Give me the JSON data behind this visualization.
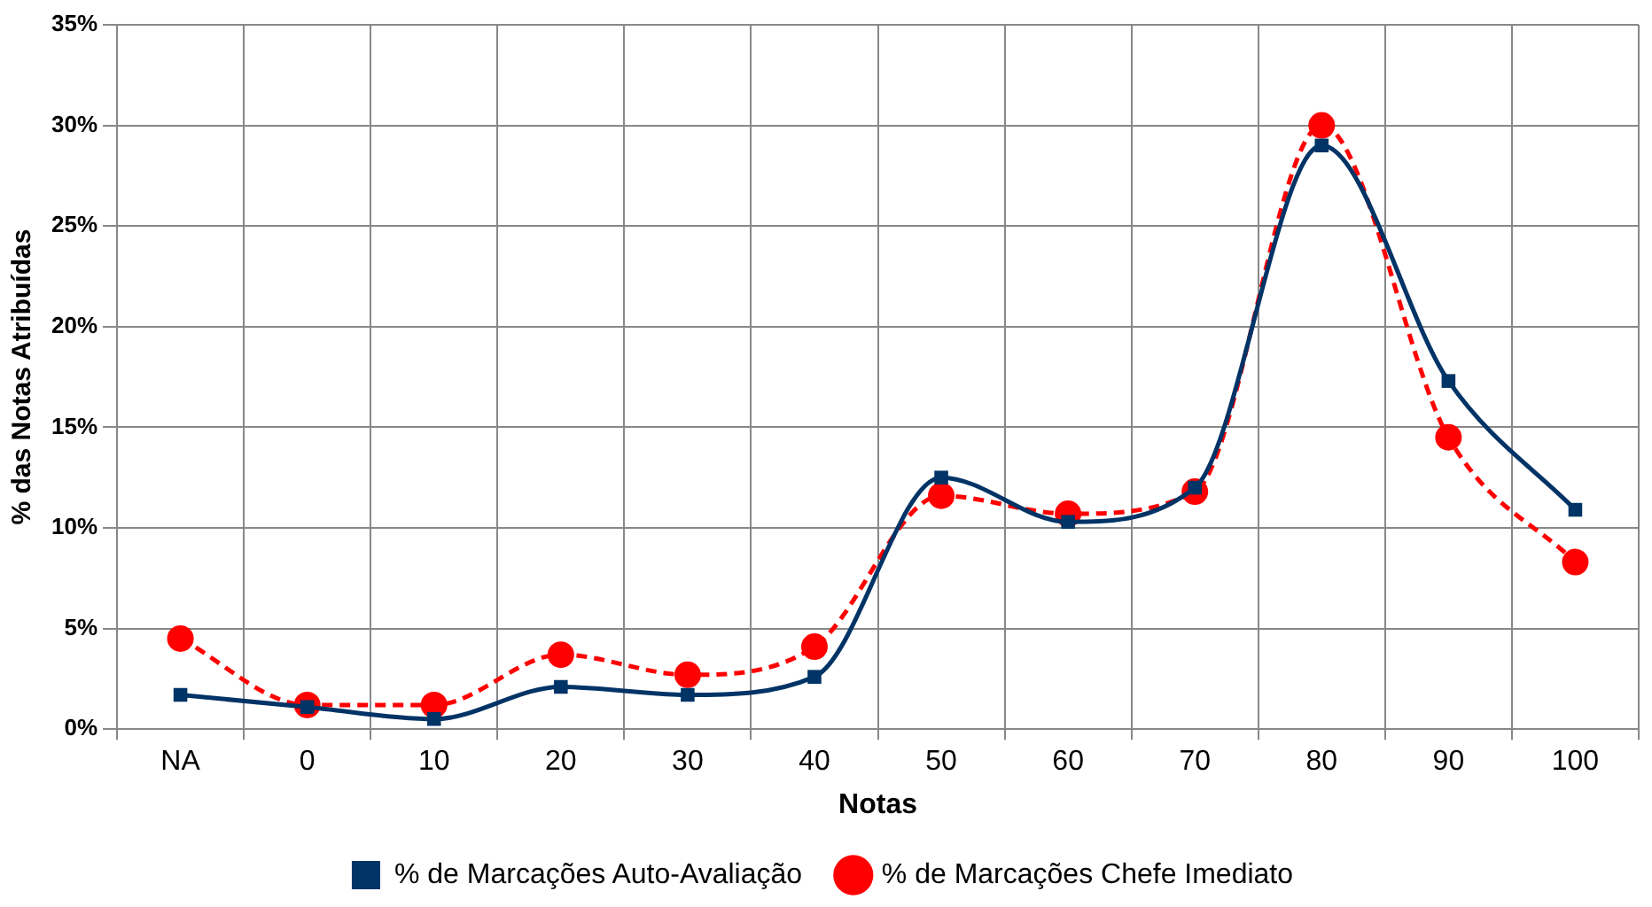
{
  "chart_data": {
    "type": "line",
    "xlabel": "Notas",
    "ylabel": "% das Notas Atribuídas",
    "categories": [
      "NA",
      "0",
      "10",
      "20",
      "30",
      "40",
      "50",
      "60",
      "70",
      "80",
      "90",
      "100"
    ],
    "series": [
      {
        "name": "% de Marcações Auto-Avaliação",
        "color": "#003366",
        "marker": "square",
        "line_style": "solid",
        "values": [
          1.7,
          1.1,
          0.5,
          2.1,
          1.7,
          2.6,
          12.5,
          10.3,
          12.0,
          29.0,
          17.3,
          10.9
        ]
      },
      {
        "name": "% de Marcações Chefe Imediato",
        "color": "#ff0000",
        "marker": "circle",
        "line_style": "dashed",
        "values": [
          4.5,
          1.2,
          1.2,
          3.7,
          2.7,
          4.1,
          11.6,
          10.7,
          11.8,
          30.0,
          14.5,
          8.3
        ]
      }
    ],
    "ylim": [
      0,
      35
    ],
    "yticks": [
      {
        "value": 0,
        "label": "0%"
      },
      {
        "value": 5,
        "label": "5%"
      },
      {
        "value": 10,
        "label": "10%"
      },
      {
        "value": 15,
        "label": "15%"
      },
      {
        "value": 20,
        "label": "20%"
      },
      {
        "value": 25,
        "label": "25%"
      },
      {
        "value": 30,
        "label": "30%"
      },
      {
        "value": 35,
        "label": "35%"
      }
    ],
    "grid": true,
    "legend": "bottom"
  }
}
